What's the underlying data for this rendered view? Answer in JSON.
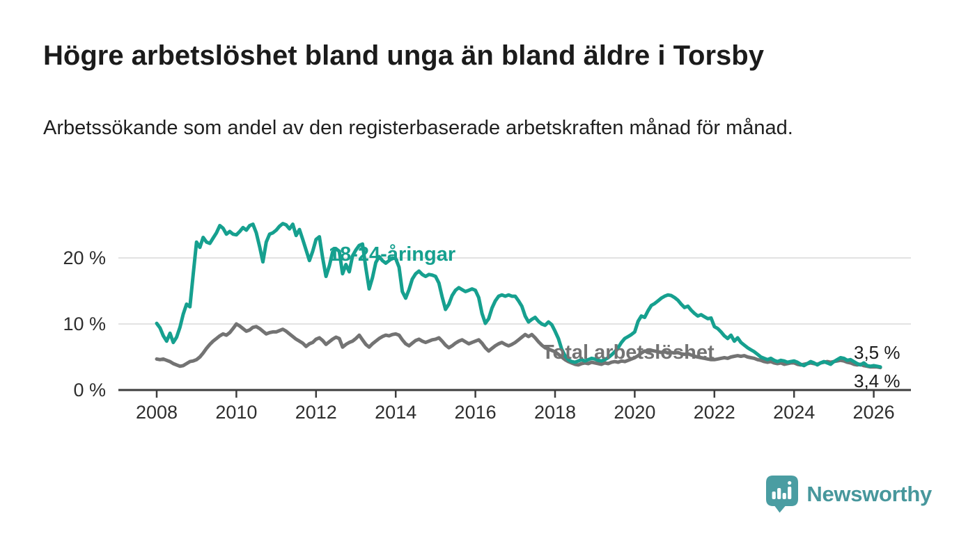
{
  "title": "Högre arbetslöshet bland unga än bland äldre i Torsby",
  "subtitle": "Arbetssökande som andel av den registerbaserade arbetskraften månad för månad.",
  "branding": {
    "logo_text": "Newsworthy",
    "logo_bubble_color": "#4a9da2",
    "logo_text_color": "#47979c"
  },
  "colors": {
    "youth_line": "#16a08f",
    "total_line": "#737373",
    "axis": "#3d3d3d",
    "grid": "#d8d8d8",
    "tick_text": "#2e2e2e",
    "end_label_text": "#1a1a1a"
  },
  "chart_data": {
    "type": "line",
    "x_start_year": 2008,
    "x_step_months": 1,
    "x_ticks": [
      {
        "value": 2008,
        "label": "2008"
      },
      {
        "value": 2010,
        "label": "2010"
      },
      {
        "value": 2012,
        "label": "2012"
      },
      {
        "value": 2014,
        "label": "2014"
      },
      {
        "value": 2016,
        "label": "2016"
      },
      {
        "value": 2018,
        "label": "2018"
      },
      {
        "value": 2020,
        "label": "2020"
      },
      {
        "value": 2022,
        "label": "2022"
      },
      {
        "value": 2024,
        "label": "2024"
      },
      {
        "value": 2026,
        "label": "2026"
      }
    ],
    "y_ticks": [
      {
        "value": 0,
        "label": "0 %"
      },
      {
        "value": 10,
        "label": "10 %"
      },
      {
        "value": 20,
        "label": "20 %"
      }
    ],
    "ylim": [
      0,
      27
    ],
    "grid": true,
    "legend_position": "inline-labels",
    "series": [
      {
        "name": "Total arbetslöshet",
        "color": "#737373",
        "end_label": "3,4 %",
        "last_value": 3.4,
        "values": [
          4.7,
          4.6,
          4.7,
          4.5,
          4.3,
          4.0,
          3.8,
          3.6,
          3.7,
          4.0,
          4.3,
          4.4,
          4.6,
          5.0,
          5.6,
          6.3,
          6.9,
          7.4,
          7.8,
          8.2,
          8.5,
          8.3,
          8.7,
          9.3,
          10.0,
          9.7,
          9.3,
          8.9,
          9.1,
          9.5,
          9.6,
          9.3,
          8.9,
          8.5,
          8.7,
          8.8,
          8.8,
          9.0,
          9.2,
          8.9,
          8.5,
          8.1,
          7.7,
          7.4,
          7.1,
          6.6,
          7.0,
          7.2,
          7.7,
          7.9,
          7.5,
          6.9,
          7.3,
          7.7,
          8.0,
          7.8,
          6.5,
          6.9,
          7.2,
          7.4,
          7.8,
          8.3,
          7.6,
          6.9,
          6.5,
          7.0,
          7.4,
          7.8,
          8.1,
          8.3,
          8.2,
          8.4,
          8.5,
          8.3,
          7.6,
          7.0,
          6.7,
          7.1,
          7.5,
          7.7,
          7.4,
          7.2,
          7.4,
          7.6,
          7.7,
          7.9,
          7.4,
          6.8,
          6.4,
          6.7,
          7.1,
          7.4,
          7.6,
          7.3,
          7.0,
          7.2,
          7.4,
          7.6,
          7.1,
          6.4,
          5.9,
          6.3,
          6.7,
          7.0,
          7.2,
          6.9,
          6.7,
          6.9,
          7.2,
          7.6,
          8.0,
          8.4,
          8.1,
          8.4,
          7.9,
          7.3,
          6.8,
          6.4,
          6.2,
          6.0,
          5.8,
          5.4,
          5.0,
          4.6,
          4.3,
          4.1,
          3.9,
          3.8,
          4.0,
          4.1,
          4.0,
          4.2,
          4.1,
          4.0,
          3.9,
          4.1,
          4.0,
          4.2,
          4.3,
          4.2,
          4.4,
          4.3,
          4.5,
          4.7,
          4.9,
          5.2,
          5.6,
          5.9,
          5.8,
          6.0,
          5.9,
          5.8,
          5.7,
          5.8,
          5.6,
          5.7,
          5.6,
          5.7,
          5.5,
          5.4,
          5.5,
          5.3,
          5.1,
          5.0,
          4.9,
          4.8,
          4.7,
          4.6,
          4.6,
          4.7,
          4.8,
          4.9,
          4.8,
          5.0,
          5.1,
          5.2,
          5.1,
          5.2,
          5.0,
          4.9,
          4.8,
          4.6,
          4.5,
          4.3,
          4.2,
          4.3,
          4.1,
          4.0,
          4.1,
          3.9,
          4.0,
          4.1,
          4.1,
          3.9,
          3.8,
          3.9,
          4.0,
          4.1,
          4.0,
          3.9,
          4.1,
          4.2,
          4.3,
          4.2,
          4.3,
          4.4,
          4.5,
          4.4,
          4.2,
          4.1,
          3.9,
          3.8,
          3.9,
          3.7,
          3.6,
          3.5,
          3.5,
          3.5,
          3.4
        ]
      },
      {
        "name": "18-24-åringar",
        "color": "#16a08f",
        "end_label": "3,5 %",
        "last_value": 3.5,
        "values": [
          10.1,
          9.4,
          8.2,
          7.4,
          8.6,
          7.2,
          8.0,
          9.5,
          11.5,
          13.0,
          12.6,
          17.5,
          22.4,
          21.6,
          23.1,
          22.4,
          22.2,
          23.0,
          23.8,
          24.9,
          24.5,
          23.6,
          24.0,
          23.6,
          23.5,
          24.0,
          24.6,
          24.2,
          24.9,
          25.1,
          23.8,
          21.7,
          19.4,
          22.4,
          23.6,
          23.8,
          24.2,
          24.8,
          25.2,
          25.0,
          24.4,
          25.1,
          23.4,
          24.3,
          22.8,
          21.2,
          19.6,
          21.0,
          22.8,
          23.2,
          20.0,
          17.2,
          18.8,
          20.9,
          21.4,
          21.0,
          17.6,
          19.0,
          17.9,
          20.3,
          21.2,
          21.9,
          22.1,
          18.5,
          15.3,
          17.0,
          19.3,
          20.2,
          19.6,
          19.2,
          19.6,
          20.0,
          19.9,
          18.6,
          14.9,
          13.9,
          15.2,
          16.8,
          17.6,
          18.0,
          17.5,
          17.2,
          17.5,
          17.4,
          17.2,
          16.2,
          14.1,
          12.2,
          13.0,
          14.3,
          15.1,
          15.5,
          15.2,
          14.9,
          15.1,
          15.3,
          15.1,
          14.0,
          11.6,
          10.1,
          10.8,
          12.4,
          13.5,
          14.2,
          14.4,
          14.2,
          14.4,
          14.2,
          14.2,
          13.5,
          12.7,
          11.2,
          10.3,
          10.7,
          11.0,
          10.4,
          10.0,
          9.8,
          10.3,
          9.9,
          8.9,
          7.8,
          6.2,
          5.2,
          4.6,
          4.3,
          4.2,
          4.4,
          4.6,
          4.4,
          4.6,
          4.8,
          4.7,
          4.5,
          4.4,
          4.6,
          4.9,
          5.3,
          5.8,
          6.4,
          7.2,
          7.8,
          8.1,
          8.4,
          8.8,
          10.4,
          11.2,
          11.0,
          12.0,
          12.8,
          13.1,
          13.5,
          13.9,
          14.2,
          14.4,
          14.3,
          14.0,
          13.6,
          13.0,
          12.5,
          12.7,
          12.1,
          11.6,
          11.2,
          11.4,
          11.1,
          10.8,
          10.9,
          9.6,
          9.3,
          8.8,
          8.2,
          7.8,
          8.3,
          7.4,
          7.9,
          7.2,
          6.8,
          6.4,
          6.1,
          5.8,
          5.4,
          5.0,
          4.8,
          4.6,
          4.8,
          4.5,
          4.3,
          4.5,
          4.4,
          4.2,
          4.3,
          4.4,
          4.2,
          3.9,
          3.7,
          4.0,
          4.3,
          4.1,
          3.8,
          4.1,
          4.3,
          4.1,
          3.9,
          4.3,
          4.6,
          4.9,
          4.8,
          4.5,
          4.6,
          4.3,
          4.0,
          3.8,
          4.1,
          3.7,
          3.6,
          3.7,
          3.6,
          3.5
        ]
      }
    ]
  }
}
